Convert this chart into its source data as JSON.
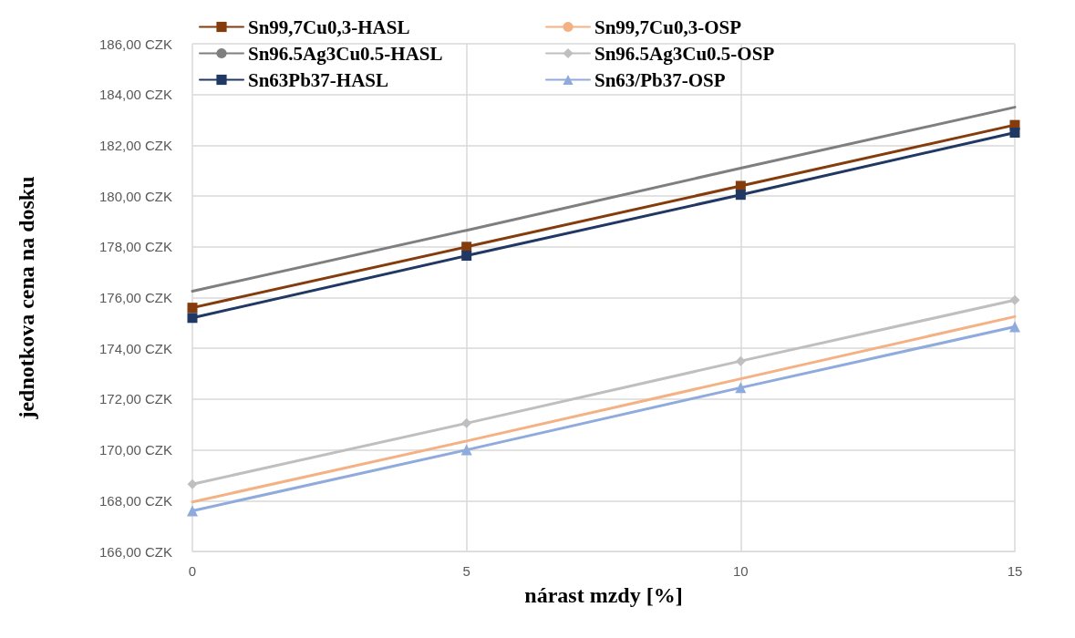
{
  "chart_data": {
    "type": "line",
    "xlabel": "nárast mzdy [%]",
    "ylabel": "jednotkova cena na dosku",
    "x": [
      0,
      5,
      10,
      15
    ],
    "series": [
      {
        "name": "Sn99,7Cu0,3-HASL",
        "color": "#843c0c",
        "marker": "square",
        "values": [
          175.6,
          178.0,
          180.4,
          182.8
        ]
      },
      {
        "name": "Sn99,7Cu0,3-OSP",
        "color": "#f4b183",
        "marker": "none",
        "values": [
          167.95,
          170.35,
          172.8,
          175.25
        ]
      },
      {
        "name": "Sn96.5Ag3Cu0.5-HASL",
        "color": "#7f7f7f",
        "marker": "none",
        "values": [
          176.25,
          178.65,
          181.1,
          183.5
        ]
      },
      {
        "name": "Sn96.5Ag3Cu0.5-OSP",
        "color": "#bfbfbf",
        "marker": "diamond",
        "values": [
          168.65,
          171.05,
          173.5,
          175.9
        ]
      },
      {
        "name": "Sn63Pb37-HASL",
        "color": "#203864",
        "marker": "square",
        "values": [
          175.2,
          177.65,
          180.05,
          182.5
        ]
      },
      {
        "name": "Sn63/Pb37-OSP",
        "color": "#8faadc",
        "marker": "triangle",
        "values": [
          167.6,
          170.0,
          172.45,
          174.85
        ]
      }
    ],
    "xlim": [
      0,
      15
    ],
    "xticks": [
      0,
      5,
      10,
      15
    ],
    "ylim": [
      166,
      186
    ],
    "yticks": [
      {
        "value": 166,
        "label": "166,00 CZK"
      },
      {
        "value": 168,
        "label": "168,00 CZK"
      },
      {
        "value": 170,
        "label": "170,00 CZK"
      },
      {
        "value": 172,
        "label": "172,00 CZK"
      },
      {
        "value": 174,
        "label": "174,00 CZK"
      },
      {
        "value": 176,
        "label": "176,00 CZK"
      },
      {
        "value": 178,
        "label": "178,00 CZK"
      },
      {
        "value": 180,
        "label": "180,00 CZK"
      },
      {
        "value": 182,
        "label": "182,00 CZK"
      },
      {
        "value": 184,
        "label": "184,00 CZK"
      },
      {
        "value": 186,
        "label": "186,00 CZK"
      }
    ],
    "grid": true,
    "legend": "top",
    "line_style": "solid"
  }
}
